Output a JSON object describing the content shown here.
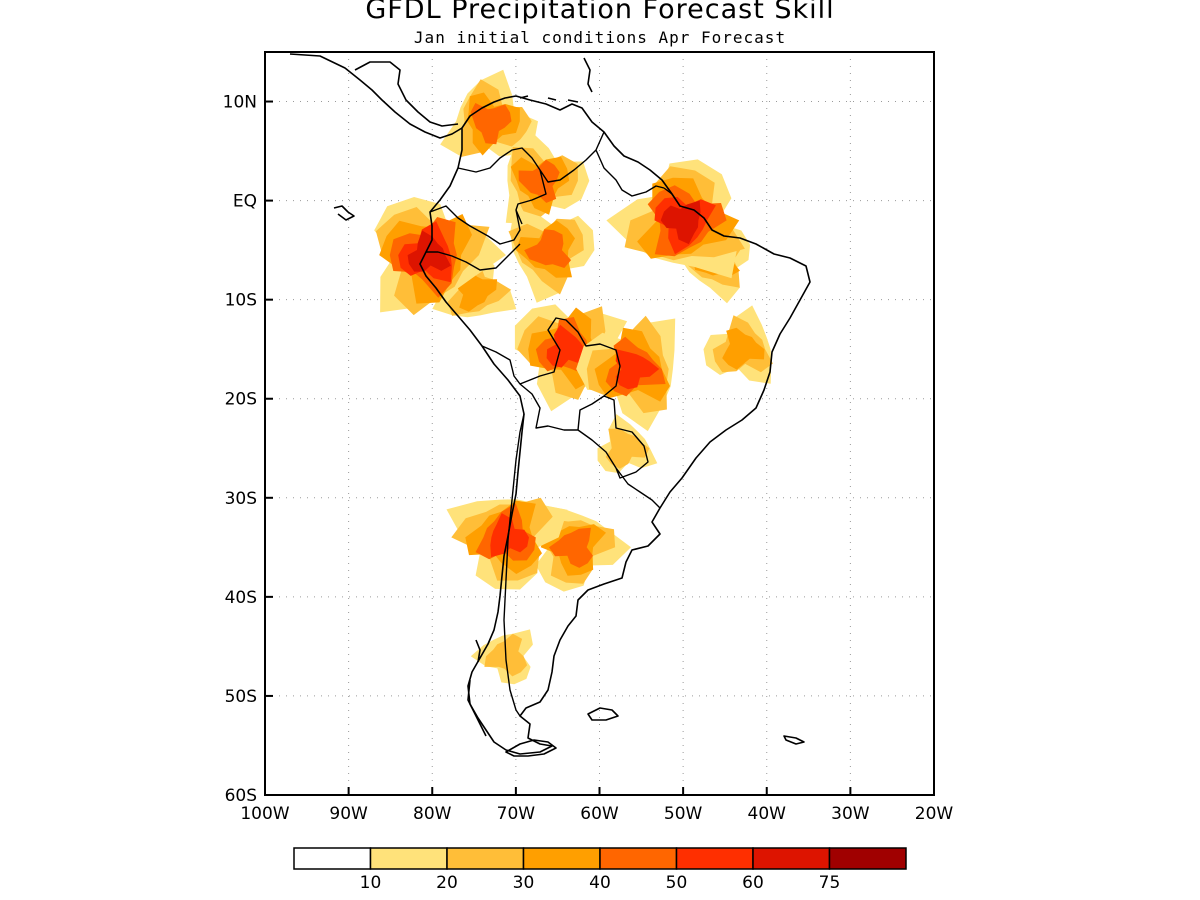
{
  "title": "GFDL Precipitation Forecast Skill",
  "subtitle": "Jan initial conditions  Apr Forecast",
  "map": {
    "region": "South America",
    "lon_range": [
      -100,
      -20
    ],
    "lat_range": [
      -60,
      15
    ],
    "grid": "dotted",
    "lat_ticks": [
      {
        "value": 10,
        "label": "10N"
      },
      {
        "value": 0,
        "label": "EQ"
      },
      {
        "value": -10,
        "label": "10S"
      },
      {
        "value": -20,
        "label": "20S"
      },
      {
        "value": -30,
        "label": "30S"
      },
      {
        "value": -40,
        "label": "40S"
      },
      {
        "value": -50,
        "label": "50S"
      },
      {
        "value": -60,
        "label": "60S"
      }
    ],
    "lon_ticks": [
      {
        "value": -100,
        "label": "100W"
      },
      {
        "value": -90,
        "label": "90W"
      },
      {
        "value": -80,
        "label": "80W"
      },
      {
        "value": -70,
        "label": "70W"
      },
      {
        "value": -60,
        "label": "60W"
      },
      {
        "value": -50,
        "label": "50W"
      },
      {
        "value": -40,
        "label": "40W"
      },
      {
        "value": -30,
        "label": "30W"
      },
      {
        "value": -20,
        "label": "20W"
      }
    ],
    "skill_regions": [
      {
        "name": "northern-colombia-venezuela",
        "lon": -73,
        "lat": 8,
        "skill": 45
      },
      {
        "name": "orinoco",
        "lon": -67,
        "lat": 2,
        "skill": 40
      },
      {
        "name": "western-amazon",
        "lon": -66,
        "lat": -5,
        "skill": 40
      },
      {
        "name": "northeast-brazil",
        "lon": -46,
        "lat": -6,
        "skill": 35
      },
      {
        "name": "para-coast",
        "lon": -50,
        "lat": -2,
        "skill": 60
      },
      {
        "name": "peru-andes",
        "lon": -75,
        "lat": -9,
        "skill": 30
      },
      {
        "name": "ecuador-coast",
        "lon": -80.5,
        "lat": -5.5,
        "skill": 60
      },
      {
        "name": "bolivia",
        "lon": -64,
        "lat": -15,
        "skill": 50
      },
      {
        "name": "mato-grosso",
        "lon": -56,
        "lat": -17,
        "skill": 55
      },
      {
        "name": "bahia-minas",
        "lon": -43,
        "lat": -15,
        "skill": 35
      },
      {
        "name": "northern-argentina",
        "lon": -57,
        "lat": -25,
        "skill": 20
      },
      {
        "name": "central-argentina",
        "lon": -63,
        "lat": -35,
        "skill": 40
      },
      {
        "name": "central-chile",
        "lon": -71,
        "lat": -34,
        "skill": 50
      },
      {
        "name": "southern-andes",
        "lon": -71,
        "lat": -46,
        "skill": 20
      }
    ]
  },
  "colorbar": {
    "colors": [
      "#ffffff",
      "#ffe27a",
      "#ffbe38",
      "#ff9f00",
      "#ff6600",
      "#ff2f00",
      "#dd1400",
      "#a00000"
    ],
    "labels": [
      "10",
      "20",
      "30",
      "40",
      "50",
      "60",
      "75"
    ]
  }
}
